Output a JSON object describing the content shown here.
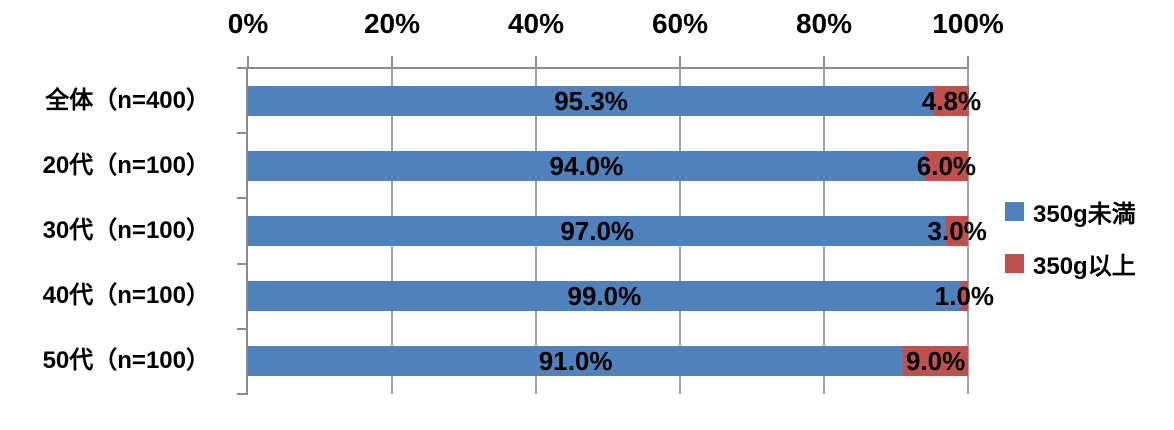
{
  "chart_data": {
    "type": "bar",
    "orientation": "horizontal",
    "stacked": true,
    "title": "",
    "categories": [
      "全体（n=400）",
      "20代（n=100）",
      "30代（n=100）",
      "40代（n=100）",
      "50代（n=100）"
    ],
    "series": [
      {
        "name": "350g未満",
        "color": "#4F81BD",
        "values": [
          95.3,
          94.0,
          97.0,
          99.0,
          91.0
        ],
        "data_labels": [
          "95.3%",
          "94.0%",
          "97.0%",
          "99.0%",
          "91.0%"
        ]
      },
      {
        "name": "350g以上",
        "color": "#C0504D",
        "values": [
          4.8,
          6.0,
          3.0,
          1.0,
          9.0
        ],
        "data_labels": [
          "4.8%",
          "6.0%",
          "3.0%",
          "1.0%",
          "9.0%"
        ]
      }
    ],
    "x_axis": {
      "min": 0,
      "max": 100,
      "tick_labels": [
        "0%",
        "20%",
        "40%",
        "60%",
        "80%",
        "100%"
      ],
      "grid": true
    },
    "legend": {
      "position": "right",
      "entries": [
        "350g未満",
        "350g以上"
      ]
    }
  },
  "style": {
    "background": "#FFFFFF",
    "grid_color": "#A3A3A3",
    "axis_color": "#8C8C8C",
    "text_color": "#000000"
  }
}
